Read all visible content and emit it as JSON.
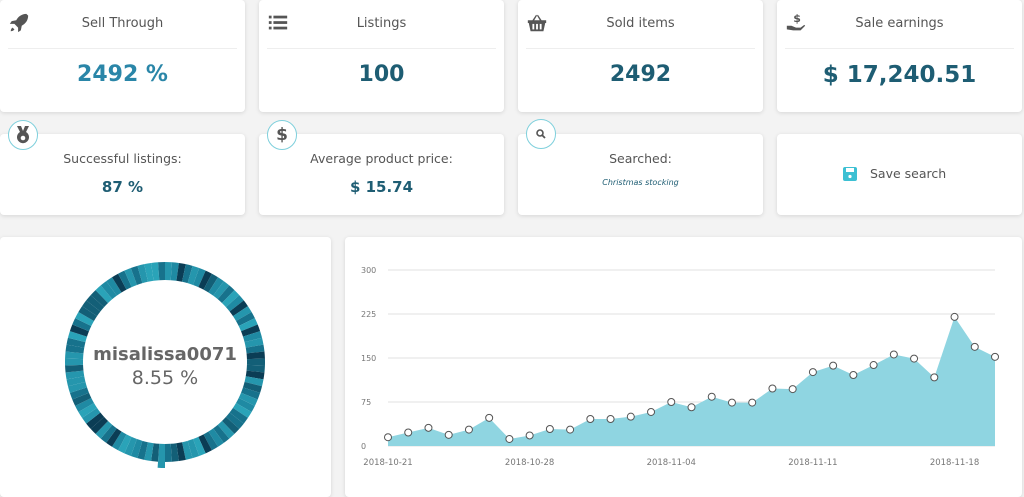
{
  "stats": [
    {
      "title": "Sell Through",
      "value": "2492 %",
      "icon": "rocket-icon"
    },
    {
      "title": "Listings",
      "value": "100",
      "icon": "list-icon"
    },
    {
      "title": "Sold items",
      "value": "2492",
      "icon": "basket-icon"
    },
    {
      "title": "Sale earnings",
      "value": "$ 17,240.51",
      "icon": "hand-dollar-icon"
    }
  ],
  "info": {
    "successful": {
      "title": "Successful listings:",
      "value": "87 %",
      "icon": "medal-icon"
    },
    "avg_price": {
      "title": "Average product price:",
      "value": "$ 15.74",
      "icon": "dollar-icon"
    },
    "searched": {
      "title": "Searched:",
      "value": "Christmas stocking",
      "icon": "search-icon"
    },
    "save_label": "Save search"
  },
  "donut": {
    "seller": "misalissa0071",
    "percent": "8.55 %",
    "colors": [
      "#0b3d55",
      "#17728c",
      "#2596ad",
      "#1f8aa3",
      "#2aa3b8",
      "#135f77"
    ]
  },
  "chart_data": {
    "type": "area",
    "x": [
      "2018-10-21",
      "2018-10-22",
      "2018-10-23",
      "2018-10-24",
      "2018-10-25",
      "2018-10-26",
      "2018-10-27",
      "2018-10-28",
      "2018-10-29",
      "2018-10-30",
      "2018-10-31",
      "2018-11-01",
      "2018-11-02",
      "2018-11-03",
      "2018-11-04",
      "2018-11-05",
      "2018-11-06",
      "2018-11-07",
      "2018-11-08",
      "2018-11-09",
      "2018-11-10",
      "2018-11-11",
      "2018-11-12",
      "2018-11-13",
      "2018-11-14",
      "2018-11-15",
      "2018-11-16",
      "2018-11-17",
      "2018-11-18",
      "2018-11-19",
      "2018-11-20"
    ],
    "values": [
      15,
      23,
      31,
      19,
      28,
      48,
      12,
      18,
      29,
      28,
      46,
      46,
      50,
      58,
      75,
      66,
      84,
      74,
      74,
      98,
      97,
      126,
      137,
      121,
      138,
      156,
      149,
      117,
      220,
      169,
      152
    ],
    "yticks": [
      0,
      75,
      150,
      225,
      300
    ],
    "xticks": [
      "2018-10-21",
      "2018-10-28",
      "2018-11-04",
      "2018-11-11",
      "2018-11-18"
    ],
    "ylim": [
      0,
      300
    ],
    "grid": true,
    "color": "#8fd5e1"
  }
}
